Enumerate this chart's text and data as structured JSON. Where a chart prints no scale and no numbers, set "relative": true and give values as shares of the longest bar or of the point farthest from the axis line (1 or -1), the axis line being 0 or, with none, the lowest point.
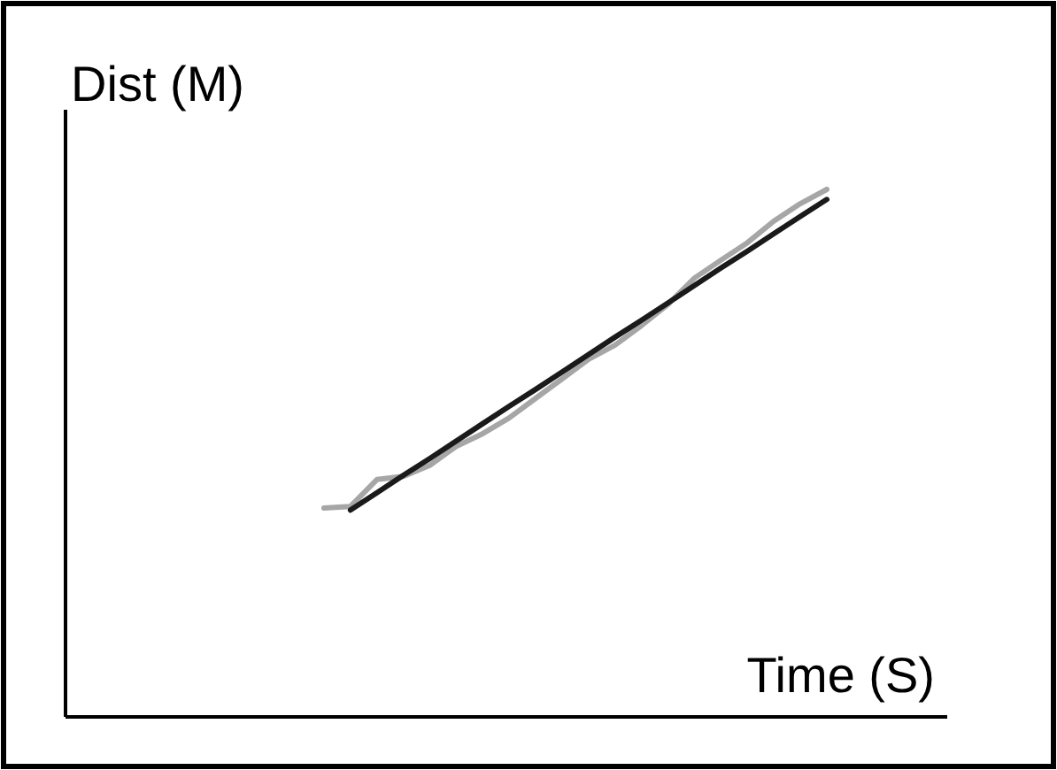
{
  "chart_data": {
    "type": "line",
    "relative": true,
    "xlabel": "Time (S)",
    "ylabel": "Dist (M)",
    "line_style": "solid",
    "categories": [
      null,
      null,
      null,
      null,
      null,
      null,
      null,
      null,
      null,
      null,
      null,
      null,
      null,
      null,
      null,
      null,
      null,
      null,
      null,
      null
    ],
    "series": [
      {
        "color": "#a6a6a6",
        "values": [
          0.396,
          0.399,
          0.45,
          0.456,
          0.477,
          0.513,
          0.537,
          0.567,
          0.604,
          0.641,
          0.678,
          0.705,
          0.742,
          0.782,
          0.832,
          0.866,
          0.899,
          0.94,
          0.973,
          1
        ]
      },
      {
        "color": "#1a1a1a",
        "values": [
          null,
          0.392,
          0.425,
          0.458,
          0.49,
          0.523,
          0.556,
          0.589,
          0.621,
          0.654,
          0.687,
          0.72,
          0.752,
          0.785,
          0.818,
          0.851,
          0.883,
          0.916,
          0.949,
          0.981
        ]
      }
    ]
  }
}
